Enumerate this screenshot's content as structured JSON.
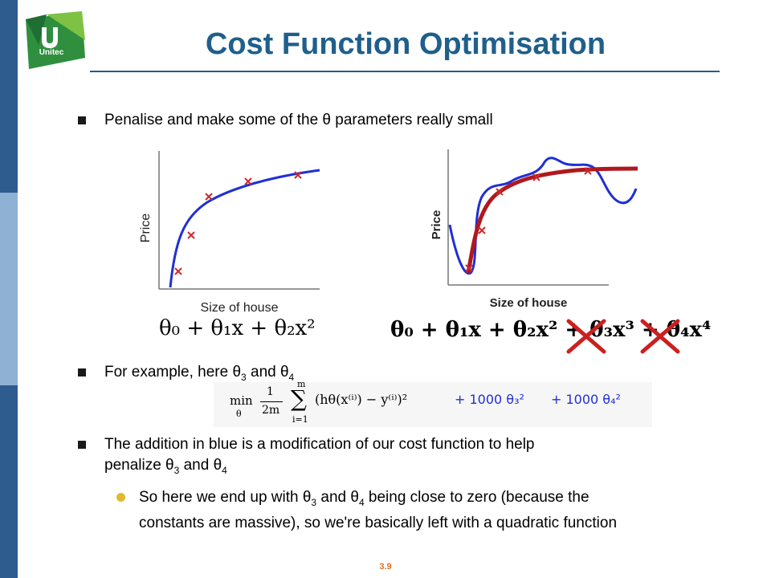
{
  "slide": {
    "title": "Cost Function Optimisation",
    "logo_text": "Unitec",
    "page_number": "3.9"
  },
  "bullets": {
    "b1": "Penalise and make some of the θ parameters really small",
    "b2_prefix": "For example, here θ",
    "b2_sub1": "3",
    "b2_mid": " and θ",
    "b2_sub2": "4",
    "b3_line1": "The addition in blue is a modification of our cost function to help",
    "b3_line2_prefix": "penalize θ",
    "b3_sub1": "3",
    "b3_mid": " and θ",
    "b3_sub2": "4",
    "sub1_line1_prefix": "So here we end up with θ",
    "sub1_sub1": "3",
    "sub1_mid": " and θ",
    "sub1_sub2": "4",
    "sub1_line1_suffix": " being close to zero (because the",
    "sub1_line2": "constants are massive), so we're basically left with a quadratic function"
  },
  "graph_left": {
    "ylabel": "Price",
    "xlabel": "Size of house",
    "formula": "θ₀ + θ₁x + θ₂x²"
  },
  "graph_right": {
    "ylabel": "Price",
    "xlabel": "Size of house",
    "formula": "θ₀ + θ₁x + θ₂x² + θ₃x³ + θ₄x⁴"
  },
  "cost_function": {
    "prefix": "min",
    "subscript": "θ",
    "fraction_num": "1",
    "fraction_den": "2m",
    "sum_top": "m",
    "sum_bottom": "i=1",
    "body": "(hθ(x⁽ⁱ⁾) − y⁽ⁱ⁾)²",
    "penalty1": "+ 1000 θ₃²",
    "penalty2": "+ 1000 θ₄²"
  },
  "colors": {
    "title": "#1f5f8b",
    "bar_dark": "#2e5c8e",
    "bar_light": "#8fb1d4",
    "curve_blue": "#1f2fd6",
    "curve_red": "#b0181e",
    "cross_red": "#cc2a2a",
    "bullet_dot": "#e0b92e"
  }
}
